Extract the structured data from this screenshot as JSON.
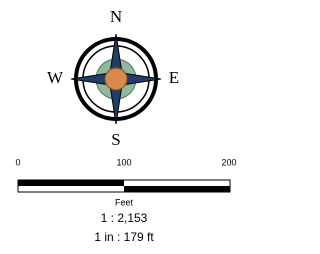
{
  "compass": {
    "north": "N",
    "south": "S",
    "west": "W",
    "east": "E"
  },
  "scale_bar": {
    "labels": [
      "0",
      "100",
      "200"
    ],
    "unit": "Feet"
  },
  "scale_text": {
    "ratio": "1 : 2,153",
    "inch": "1 in : 179 ft"
  }
}
